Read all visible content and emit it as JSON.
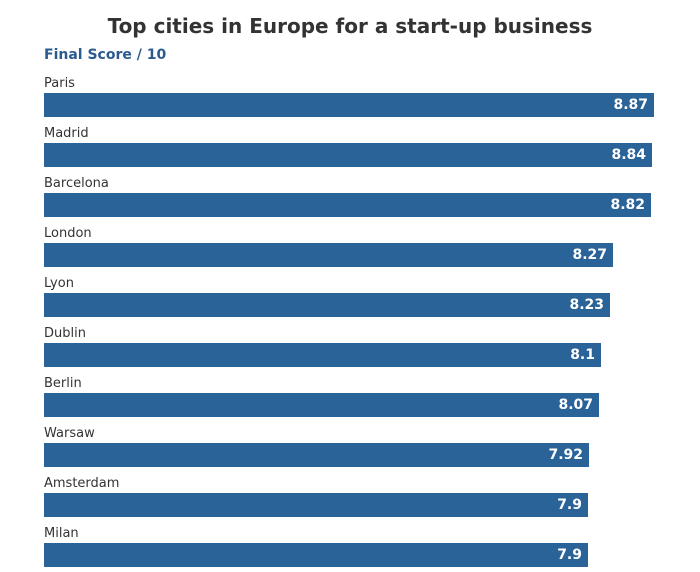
{
  "chart_data": {
    "type": "bar",
    "orientation": "horizontal",
    "title": "Top cities in Europe for a start-up business",
    "subtitle": "Final Score / 10",
    "categories": [
      "Paris",
      "Madrid",
      "Barcelona",
      "London",
      "Lyon",
      "Dublin",
      "Berlin",
      "Warsaw",
      "Amsterdam",
      "Milan"
    ],
    "values": [
      8.87,
      8.84,
      8.82,
      8.27,
      8.23,
      8.1,
      8.07,
      7.92,
      7.9,
      7.9
    ],
    "value_labels": [
      "8.87",
      "8.84",
      "8.82",
      "8.27",
      "8.23",
      "8.1",
      "8.07",
      "7.92",
      "7.9",
      "7.9"
    ],
    "xlim": [
      0,
      9.3
    ],
    "xlabel": "",
    "ylabel": "",
    "grid": false,
    "bar_color": "#2a6398"
  }
}
